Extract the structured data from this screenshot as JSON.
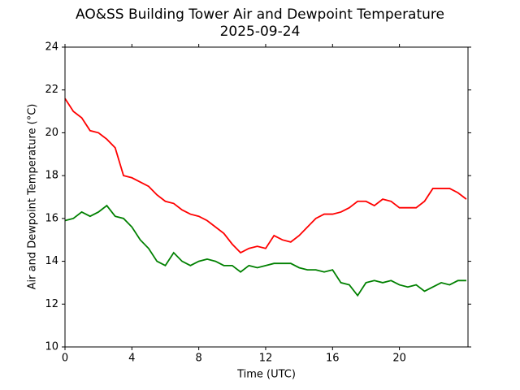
{
  "chart_data": {
    "type": "line",
    "title": "AO&SS Building Tower Air and Dewpoint Temperature",
    "subtitle": "2025-09-24",
    "x_label": "Time (UTC)",
    "y_label": "Air and Dewpoint Temperature (°C)",
    "x": [
      0,
      0.5,
      1,
      1.5,
      2,
      2.5,
      3,
      3.5,
      4,
      4.5,
      5,
      5.5,
      6,
      6.5,
      7,
      7.5,
      8,
      8.5,
      9,
      9.5,
      10,
      10.5,
      11,
      11.5,
      12,
      12.5,
      13,
      13.5,
      14,
      14.5,
      15,
      15.5,
      16,
      16.5,
      17,
      17.5,
      18,
      18.5,
      19,
      19.5,
      20,
      20.5,
      21,
      21.5,
      22,
      22.5,
      23,
      23.5,
      24
    ],
    "series": [
      {
        "color": "#ff0000",
        "values": [
          21.6,
          21.0,
          20.7,
          20.1,
          20.0,
          19.7,
          19.3,
          18.0,
          17.9,
          17.7,
          17.5,
          17.1,
          16.8,
          16.7,
          16.4,
          16.2,
          16.1,
          15.9,
          15.6,
          15.3,
          14.8,
          14.4,
          14.6,
          14.7,
          14.6,
          15.2,
          15.0,
          14.9,
          15.2,
          15.6,
          16.0,
          16.2,
          16.2,
          16.3,
          16.5,
          16.8,
          16.8,
          16.6,
          16.9,
          16.8,
          16.5,
          16.5,
          16.5,
          16.8,
          17.4,
          17.4,
          17.4,
          17.2,
          16.9
        ]
      },
      {
        "color": "#008000",
        "values": [
          15.9,
          16.0,
          16.3,
          16.1,
          16.3,
          16.6,
          16.1,
          16.0,
          15.6,
          15.0,
          14.6,
          14.0,
          13.8,
          14.4,
          14.0,
          13.8,
          14.0,
          14.1,
          14.0,
          13.8,
          13.8,
          13.5,
          13.8,
          13.7,
          13.8,
          13.9,
          13.9,
          13.9,
          13.7,
          13.6,
          13.6,
          13.5,
          13.6,
          13.0,
          12.9,
          12.4,
          13.0,
          13.1,
          13.0,
          13.1,
          12.9,
          12.8,
          12.9,
          12.6,
          12.8,
          13.0,
          12.9,
          13.1,
          13.1
        ]
      }
    ],
    "xlim": [
      0,
      24.1
    ],
    "xticks": [
      0,
      4,
      8,
      12,
      16,
      20
    ],
    "ylim": [
      10,
      24
    ],
    "yticks": [
      10,
      12,
      14,
      16,
      18,
      20,
      22,
      24
    ]
  }
}
